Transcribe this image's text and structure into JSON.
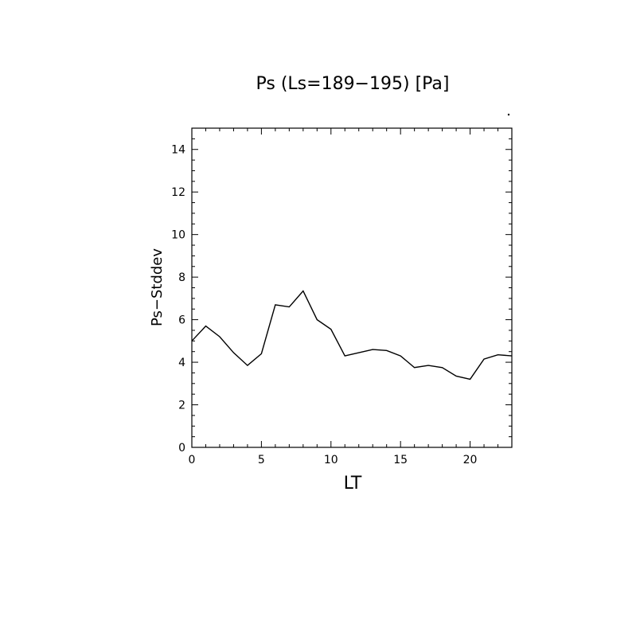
{
  "chart_data": {
    "type": "line",
    "title": "Ps (Ls=189−195) [Pa]",
    "xlabel": "LT",
    "ylabel": "Ps−Stddev",
    "xlim": [
      0,
      23
    ],
    "ylim": [
      0,
      15
    ],
    "x_ticks": [
      0,
      5,
      10,
      15,
      20
    ],
    "y_ticks": [
      0,
      2,
      4,
      6,
      8,
      10,
      12,
      14
    ],
    "x_tick_labels": [
      "0",
      "5",
      "10",
      "15",
      "20"
    ],
    "y_tick_labels": [
      "0",
      "2",
      "4",
      "6",
      "8",
      "10",
      "12",
      "14"
    ],
    "grid": false,
    "colors": {
      "line": "#000000",
      "axes": "#000000",
      "background": "#ffffff"
    },
    "series": [
      {
        "x": [
          0,
          1,
          2,
          3,
          4,
          5,
          6,
          7,
          8,
          9,
          10,
          11,
          12,
          13,
          14,
          15,
          16,
          17,
          18,
          19,
          20,
          21,
          22,
          23
        ],
        "y": [
          5.0,
          5.7,
          5.2,
          4.45,
          3.85,
          4.4,
          6.7,
          6.6,
          7.35,
          6.0,
          5.55,
          4.3,
          4.45,
          4.6,
          4.55,
          4.3,
          3.75,
          3.85,
          3.75,
          3.35,
          3.2,
          4.15,
          4.35,
          4.3
        ]
      }
    ]
  }
}
